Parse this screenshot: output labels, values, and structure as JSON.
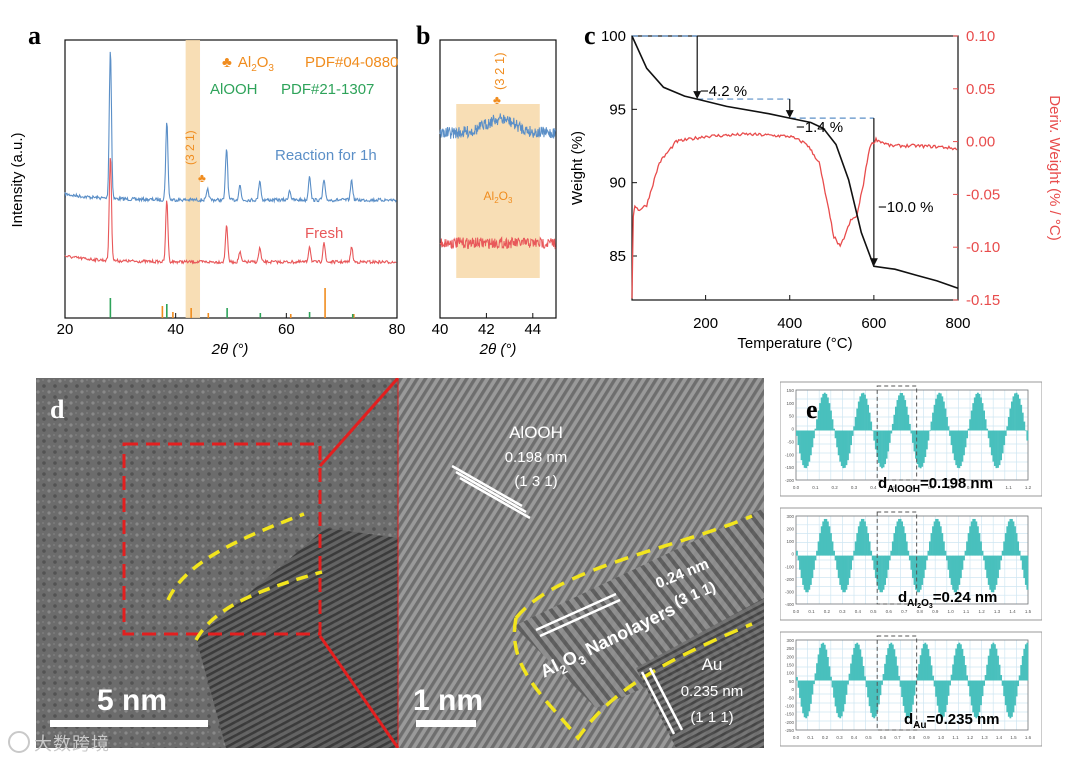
{
  "colors": {
    "blue": "#5b8fc7",
    "red": "#e8585a",
    "orange": "#f08c1e",
    "green": "#2ea35a",
    "black": "#111111",
    "dtg": "#e84c4c",
    "teal": "#49c0bd",
    "highlight": "#f7d8a8",
    "yellow": "#f2e51d",
    "redbox": "#e31f1f"
  },
  "chart_data": [
    {
      "panel": "a",
      "type": "line",
      "xlabel": "2θ (°)",
      "ylabel": "Intensity (a.u.)",
      "xlim": [
        20,
        80
      ],
      "xticks": [
        "20",
        "40",
        "60",
        "80"
      ],
      "legend": [
        {
          "symbol": "♣",
          "name": "Al",
          "sub": "2",
          "name2": "O",
          "sub2": "3",
          "pdf": "PDF#04-0880",
          "color": "orange"
        },
        {
          "symbol": "",
          "name": "AlOOH",
          "pdf": "PDF#21-1307",
          "color": "green"
        }
      ],
      "series": [
        {
          "name": "Reaction for 1h",
          "color": "blue",
          "peaks": [
            [
              28.2,
              150
            ],
            [
              38.4,
              78
            ],
            [
              45.8,
              10
            ],
            [
              49.2,
              52
            ],
            [
              51.6,
              15
            ],
            [
              55.2,
              20
            ],
            [
              60.6,
              10
            ],
            [
              64.2,
              25
            ],
            [
              66.8,
              20
            ],
            [
              71.8,
              20
            ]
          ]
        },
        {
          "name": "Fresh",
          "color": "red",
          "peaks": [
            [
              28.2,
              105
            ],
            [
              38.4,
              62
            ],
            [
              49.2,
              38
            ],
            [
              51.6,
              10
            ],
            [
              55.2,
              14
            ],
            [
              64.2,
              16
            ],
            [
              66.8,
              20
            ],
            [
              71.8,
              15
            ]
          ]
        }
      ],
      "reference_al2o3": [
        [
          37.6,
          12
        ],
        [
          39.5,
          6
        ],
        [
          42.8,
          10
        ],
        [
          45.9,
          5
        ],
        [
          60.8,
          4
        ],
        [
          67.0,
          30
        ],
        [
          72.2,
          4
        ]
      ],
      "reference_alooh": [
        [
          28.2,
          20
        ],
        [
          38.4,
          14
        ],
        [
          49.3,
          10
        ],
        [
          55.3,
          5
        ],
        [
          64.2,
          6
        ],
        [
          72.0,
          4
        ]
      ],
      "highlight_range": [
        41.8,
        44.4
      ],
      "annotation": "(3 2 1)"
    },
    {
      "panel": "b",
      "type": "line",
      "xlabel": "2θ (°)",
      "xlim": [
        40,
        45
      ],
      "xticks": [
        "40",
        "42",
        "44"
      ],
      "highlight_range": [
        40.7,
        44.3
      ],
      "highlight_label_main": "Al",
      "highlight_label_sub1": "2",
      "highlight_label_mid": "O",
      "highlight_label_sub2": "3",
      "annotation": "(3 2 1)",
      "series": [
        {
          "name": "Reaction for 1h",
          "color": "blue",
          "hump_center": 42.6,
          "hump_height": 14
        },
        {
          "name": "Fresh",
          "color": "red",
          "hump_center": 0,
          "hump_height": 0
        }
      ]
    },
    {
      "panel": "c",
      "type": "line",
      "xlabel": "Temperature (°C)",
      "ylabel_left": "Weight (%)",
      "ylabel_right": "Deriv. Weight (% / °C)",
      "xlim": [
        25,
        800
      ],
      "ylim_left": [
        82,
        100
      ],
      "ylim_right": [
        -0.15,
        0.1
      ],
      "xticks": [
        "200",
        "400",
        "600",
        "800"
      ],
      "yticks_left": [
        "85",
        "90",
        "95",
        "100"
      ],
      "yticks_right": [
        "0.10",
        "0.05",
        "0.00",
        "-0.05",
        "-0.10",
        "-0.15"
      ],
      "weight": {
        "x": [
          25,
          60,
          100,
          150,
          180,
          250,
          350,
          400,
          450,
          480,
          510,
          540,
          570,
          600,
          650,
          700,
          750,
          800
        ],
        "y": [
          100,
          97.8,
          96.5,
          95.9,
          95.7,
          95.2,
          94.7,
          94.4,
          94.1,
          93.7,
          92.6,
          90.2,
          86.6,
          84.3,
          84.1,
          83.7,
          83.3,
          82.8
        ]
      },
      "dtg": {
        "x": [
          25,
          28,
          32,
          40,
          60,
          90,
          130,
          200,
          300,
          400,
          440,
          470,
          490,
          505,
          520,
          535,
          545,
          560,
          575,
          590,
          605,
          640,
          700,
          760,
          800
        ],
        "y": [
          -0.15,
          -0.07,
          -0.06,
          -0.065,
          -0.06,
          -0.02,
          0.0,
          0.005,
          0.007,
          0.005,
          -0.002,
          -0.02,
          -0.06,
          -0.09,
          -0.1,
          -0.085,
          -0.075,
          -0.07,
          -0.04,
          -0.005,
          0.002,
          -0.004,
          -0.004,
          -0.005,
          -0.007
        ]
      },
      "annotations": [
        "−4.2 %",
        "−1.4 %",
        "−10.0 %"
      ]
    },
    {
      "panel": "e",
      "type": "line",
      "profiles": [
        {
          "label_main": "d",
          "label_sub": "AlOOH",
          "value": "=0.198 nm",
          "period": 0.198,
          "xlim": [
            0,
            1.2
          ],
          "xticks": [
            "0.0",
            "0.1",
            "0.2",
            "0.3",
            "0.4",
            "0.5",
            "0.6",
            "0.7",
            "0.8",
            "0.9",
            "1.0",
            "1.1",
            "1.2"
          ],
          "yticks": [
            "150",
            "100",
            "50",
            "0",
            "-50",
            "-100",
            "-150",
            "-200"
          ]
        },
        {
          "label_main": "d",
          "label_sub": "Al2O3",
          "value": "=0.24 nm",
          "period": 0.24,
          "xlim": [
            0,
            1.5
          ],
          "xticks": [
            "0.0",
            "0.1",
            "0.2",
            "0.3",
            "0.4",
            "0.5",
            "0.6",
            "0.7",
            "0.8",
            "0.9",
            "1.0",
            "1.1",
            "1.2",
            "1.3",
            "1.4",
            "1.5"
          ],
          "yticks": [
            "300",
            "200",
            "100",
            "0",
            "-100",
            "-200",
            "-300",
            "-400"
          ]
        },
        {
          "label_main": "d",
          "label_sub": "Au",
          "value": "=0.235 nm",
          "period": 0.235,
          "xlim": [
            0,
            1.6
          ],
          "xticks": [
            "0.0",
            "0.1",
            "0.2",
            "0.3",
            "0.4",
            "0.5",
            "0.6",
            "0.7",
            "0.8",
            "0.9",
            "1.0",
            "1.1",
            "1.2",
            "1.3",
            "1.4",
            "1.5",
            "1.6"
          ],
          "yticks": [
            "300",
            "250",
            "200",
            "150",
            "100",
            "50",
            "0",
            "-50",
            "-100",
            "-150",
            "-200",
            "-250"
          ]
        }
      ]
    }
  ],
  "labels": {
    "a": "a",
    "b": "b",
    "c": "c",
    "d": "d",
    "e": "e",
    "series_reaction": "Reaction for 1h",
    "series_fresh": "Fresh",
    "annot_321": "(3 2 1)"
  },
  "tem": {
    "scale_left": "5 nm",
    "scale_right": "1 nm",
    "alooh_title": "AlOOH",
    "alooh_d": "0.198 nm",
    "alooh_hkl": "(1 3 1)",
    "al2o3_d": "0.24 nm",
    "al2o3_hkl": "(3 1 1)",
    "nano_main": "Al",
    "nano_sub1": "2",
    "nano_mid": "O",
    "nano_sub2": "3",
    "nano_tail": " Nanolayers",
    "au_title": "Au",
    "au_d": "0.235 nm",
    "au_hkl": "(1 1 1)"
  },
  "watermark": "大数跨境"
}
